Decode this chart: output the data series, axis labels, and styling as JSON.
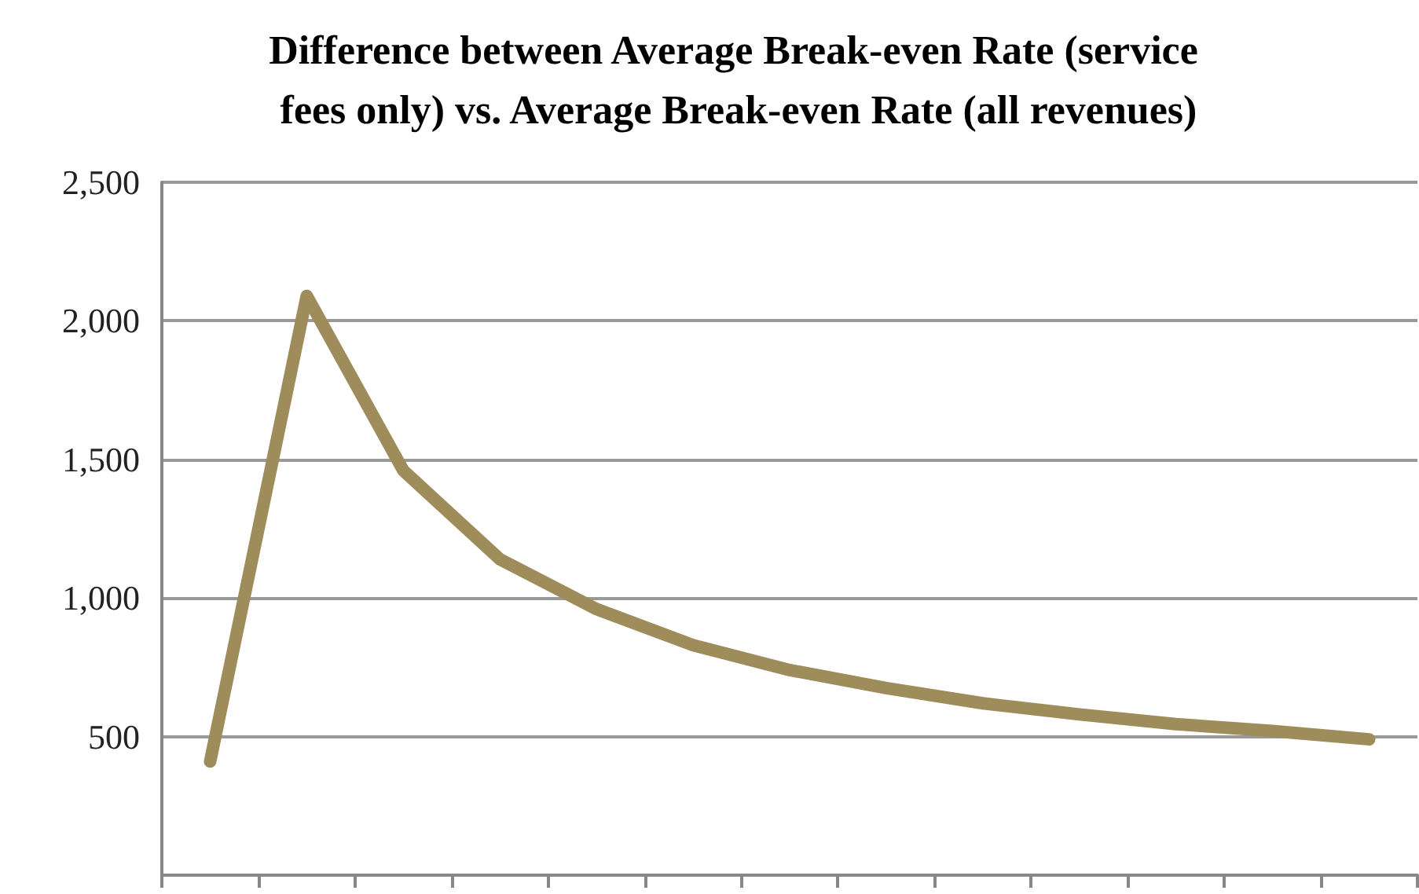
{
  "chart_data": {
    "type": "line",
    "title": "Difference between Average Break-even Rate (service fees only) vs. Average Break-even Rate (all revenues)",
    "categories": [
      null,
      null,
      null,
      null,
      null,
      null,
      null,
      null,
      null,
      null,
      null,
      null,
      null
    ],
    "series": [
      {
        "color": "#9e8c5a",
        "values": [
          410,
          2090,
          1460,
          1140,
          960,
          830,
          740,
          675,
          620,
          580,
          545,
          520,
          490
        ]
      }
    ],
    "ylim": [
      0,
      2500
    ],
    "yticks": [
      500,
      {
        "value": 1000,
        "label": "1,000"
      },
      {
        "value": 1500,
        "label": "1,500"
      },
      {
        "value": 2000,
        "label": "2,000"
      },
      {
        "value": 2500,
        "label": "2,500"
      }
    ],
    "grid": "y",
    "marker": "none",
    "line_style": "solid",
    "tick_labels": "y"
  }
}
